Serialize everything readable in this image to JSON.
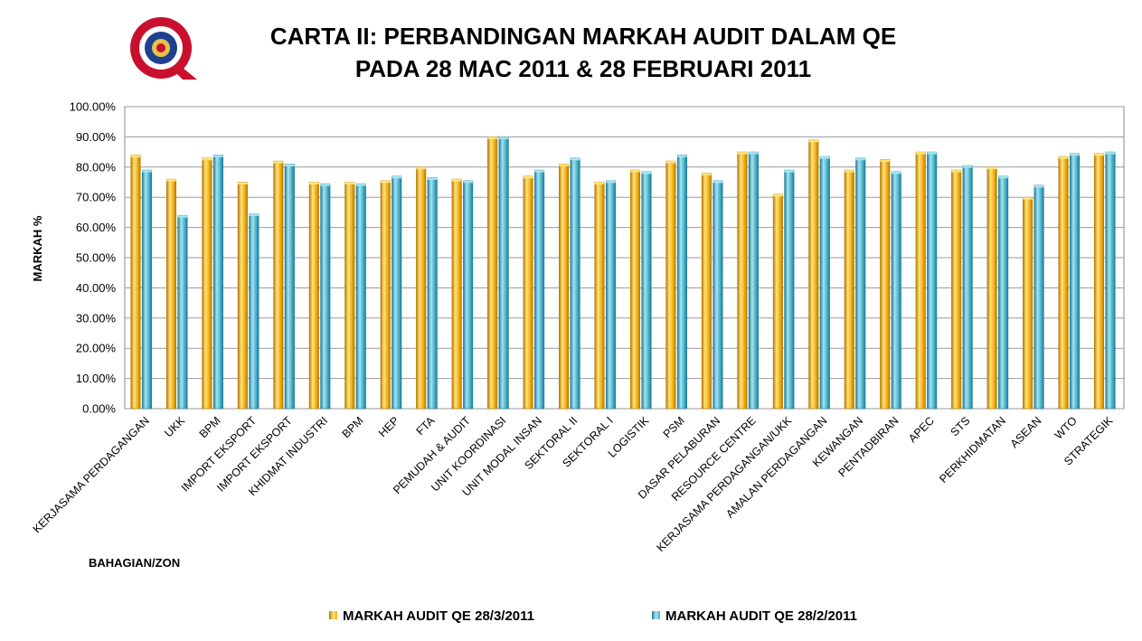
{
  "colors": {
    "series1": "#F2B31B",
    "series1_dark": "#B87A00",
    "series1_light": "#FFE37A",
    "series2": "#4FB3CC",
    "series2_dark": "#1E7E95",
    "series2_light": "#A5E4F2",
    "grid": "#9A9A9A",
    "plot_border": "#888888"
  },
  "logo": {
    "icon": "seal-logo-icon"
  },
  "chart_data": {
    "type": "bar",
    "title_lines": [
      "CARTA II: PERBANDINGAN MARKAH AUDIT DALAM QE",
      "PADA 28 MAC 2011 & 28 FEBRUARI 2011"
    ],
    "xlabel": "BAHAGIAN/ZON",
    "ylabel": "MARKAH %",
    "ylim": [
      0,
      100
    ],
    "yticks": [
      "0.00%",
      "10.00%",
      "20.00%",
      "30.00%",
      "40.00%",
      "50.00%",
      "60.00%",
      "70.00%",
      "80.00%",
      "90.00%",
      "100.00%"
    ],
    "grid": true,
    "legend_position": "bottom",
    "categories": [
      "KERJASAMA PERDAGANGAN",
      "UKK",
      "BPM",
      "IMPORT EKSPORT",
      "IMPORT EKSPORT",
      "KHIDMAT INDUSTRI",
      "BPM",
      "HEP",
      "FTA",
      "PEMUDAH & AUDIT",
      "UNIT KOORDINASI",
      "UNIT MODAL INSAN",
      "SEKTORAL II",
      "SEKTORAL I",
      "LOGISTIK",
      "PSM",
      "DASAR PELABURAN",
      "RESOURCE CENTRE",
      "KERJASAMA PERDAGANGAN/UKK",
      "AMALAN PERDAGANGAN",
      "KEWANGAN",
      "PENTADBIRAN",
      "APEC",
      "STS",
      "PERKHIDMATAN",
      "ASEAN",
      "WTO",
      "STRATEGIK"
    ],
    "series": [
      {
        "name": "MARKAH AUDIT QE 28/3/2011",
        "values": [
          84,
          76,
          83,
          75,
          82,
          75,
          75,
          75.5,
          80,
          76,
          90,
          77,
          81,
          75,
          79,
          82,
          78,
          85,
          71,
          89,
          79,
          82.5,
          85,
          79,
          80,
          70,
          83.5,
          84.5
        ]
      },
      {
        "name": "MARKAH AUDIT QE 28/2/2011",
        "values": [
          79,
          64,
          84,
          64.5,
          81,
          74.5,
          74.5,
          77,
          76.5,
          75.5,
          90,
          79,
          83,
          75.5,
          78.5,
          84,
          75.5,
          85,
          79,
          83.5,
          83,
          78.5,
          85,
          80.5,
          77,
          74,
          84.5,
          85
        ]
      }
    ]
  }
}
